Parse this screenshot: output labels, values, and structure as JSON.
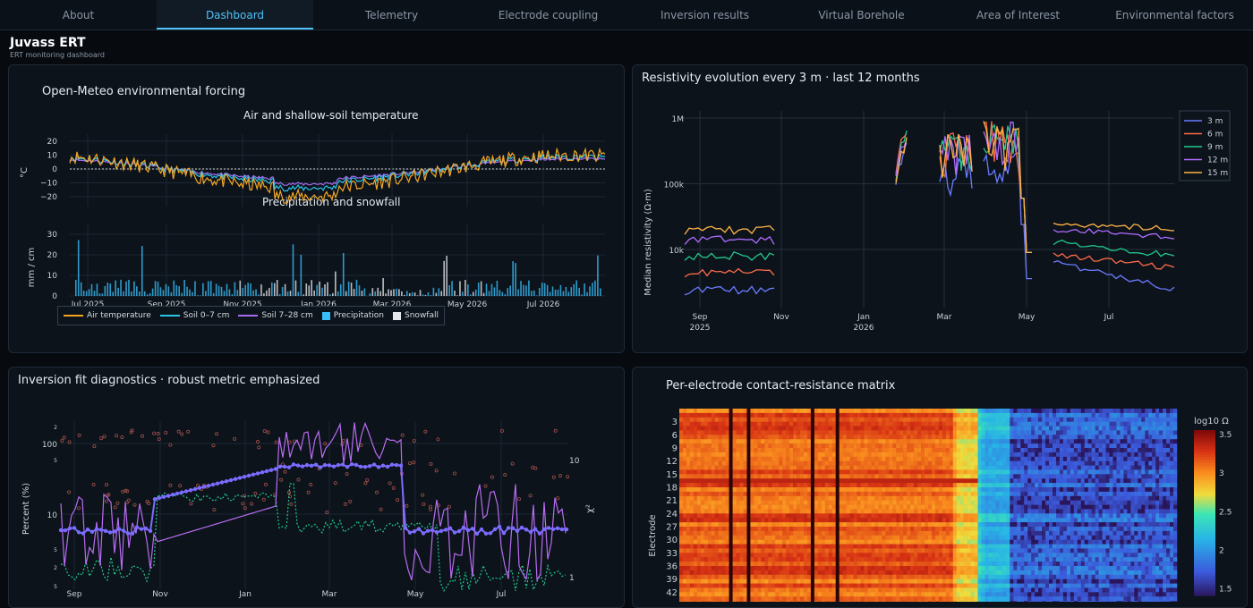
{
  "tabs": [
    "About",
    "Dashboard",
    "Telemetry",
    "Electrode coupling",
    "Inversion results",
    "Virtual Borehole",
    "Area of Interest",
    "Environmental factors"
  ],
  "active_tab": 1,
  "app": {
    "title": "Juvass ERT",
    "subtitle": "ERT monitoring dashboard"
  },
  "panel1": {
    "title": "Open-Meteo environmental forcing",
    "sub1": "Air and shallow-soil temperature",
    "sub2": "Precipitation and snowfall",
    "y1label": "°C",
    "y2label": "mm / cm",
    "y1ticks": [
      "20",
      "10",
      "0",
      "−10",
      "−20"
    ],
    "y2ticks": [
      "30",
      "20",
      "10",
      "0"
    ],
    "xticks": [
      "Jul 2025",
      "Sep 2025",
      "Nov 2025",
      "Jan 2026",
      "Mar 2026",
      "May 2026",
      "Jul 2026"
    ],
    "legend": [
      "Air temperature",
      "Soil 0–7 cm",
      "Soil 7–28 cm",
      "Precipitation",
      "Snowfall"
    ]
  },
  "panel2": {
    "title": "Resistivity evolution every 3 m · last 12 months",
    "ylabel": "Median resistivity (Ω·m)",
    "yticks": [
      "1M",
      "100k",
      "10k"
    ],
    "xticks": [
      "Sep",
      "Nov",
      "Jan",
      "Mar",
      "May",
      "Jul"
    ],
    "xyears": [
      "2025",
      "2026"
    ],
    "legend": [
      "3 m",
      "6 m",
      "9 m",
      "12 m",
      "15 m"
    ]
  },
  "panel3": {
    "title": "Inversion fit diagnostics · robust metric emphasized",
    "ylabel": "Percent (%)",
    "y2label": "χ²",
    "yticks": [
      "100",
      "10"
    ],
    "y2ticks": [
      "10",
      "1"
    ],
    "xticks": [
      "Sep",
      "Nov",
      "Jan",
      "Mar",
      "May",
      "Jul"
    ]
  },
  "panel4": {
    "title": "Per-electrode contact-resistance matrix",
    "ylabel": "Electrode",
    "cbtitle": "log10 Ω",
    "yticks": [
      "3",
      "6",
      "9",
      "12",
      "15",
      "18",
      "21",
      "24",
      "27",
      "30",
      "33",
      "36",
      "39",
      "42"
    ],
    "cbticks": [
      "3.5",
      "3",
      "2.5",
      "2",
      "1.5"
    ]
  },
  "colors": {
    "air": "#f5a623",
    "soil1": "#29c5e6",
    "soil2": "#a56cf0",
    "precip": "#38bdf8",
    "snow": "#e5e7eb",
    "r3": "#6b7cff",
    "r6": "#ff6b4a",
    "r9": "#22c98e",
    "r12": "#b06cff",
    "r15": "#ffb347"
  }
}
